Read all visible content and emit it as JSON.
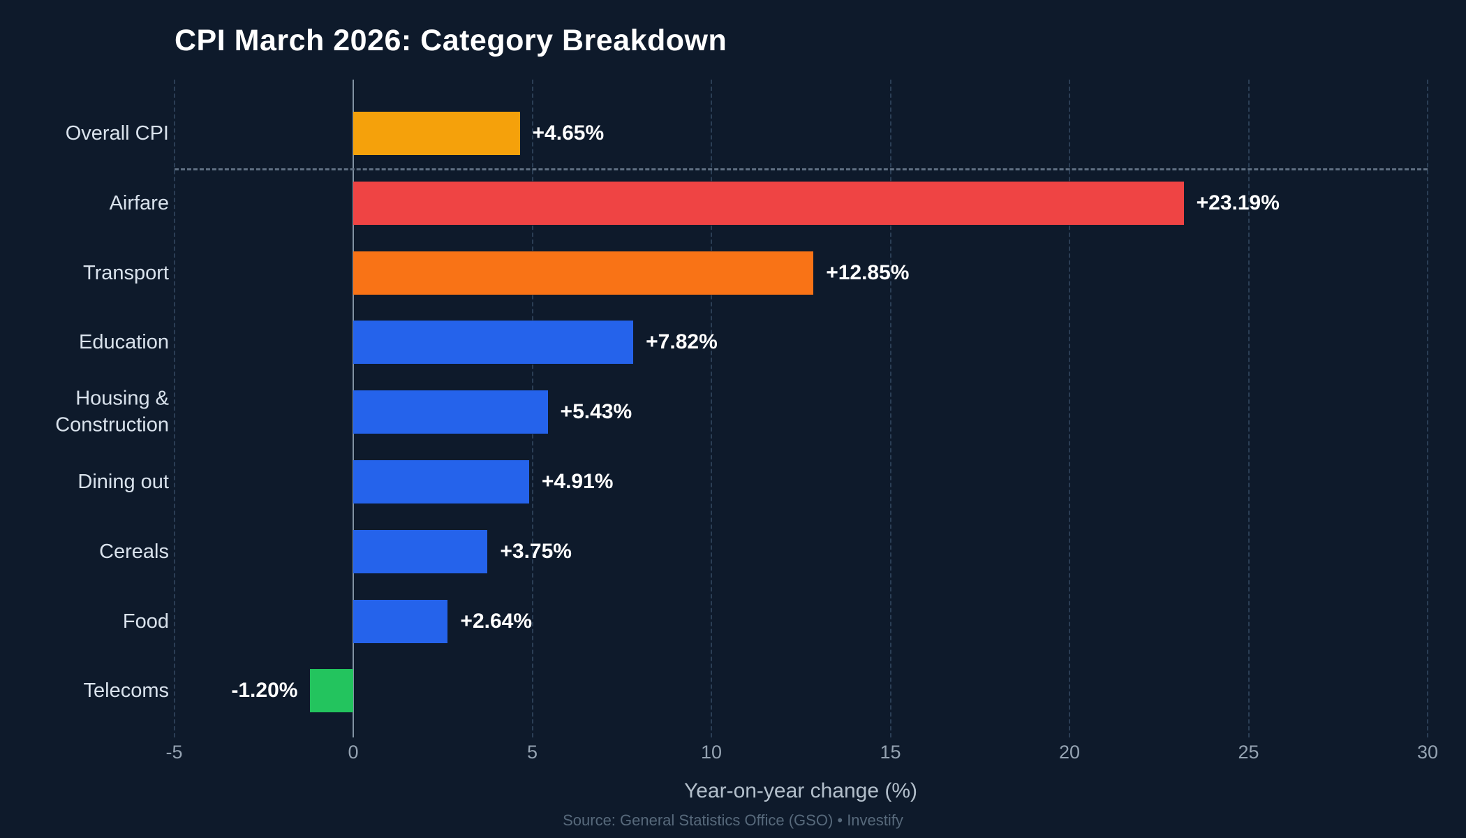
{
  "title": "CPI March 2026: Category Breakdown",
  "xaxis": {
    "label": "Year-on-year change (%)",
    "tick_labels": [
      "-5",
      "0",
      "5",
      "10",
      "15",
      "20",
      "25",
      "30"
    ]
  },
  "source": "Source: General Statistics Office (GSO) • Investify",
  "colors": {
    "background": "#0e1a2b",
    "overall_cpi": "#f5a10b",
    "airfare": "#ef4444",
    "transport": "#f97316",
    "default_blue": "#2563eb",
    "telecoms_green": "#23c45e",
    "gridline": "#2b3e55",
    "zero_line": "#8293a3",
    "separator": "#5f6f82",
    "category_text": "#d9e2ec",
    "value_text": "#ffffff",
    "tick_text": "#95a3b2",
    "axis_label_text": "#b3bfcb",
    "source_text": "#57697b"
  },
  "chart_data": {
    "type": "bar",
    "orientation": "horizontal",
    "title": "CPI March 2026: Category Breakdown",
    "xlabel": "Year-on-year change (%)",
    "ylabel": "",
    "xlim": [
      -5,
      30
    ],
    "xticks": [
      -5,
      0,
      5,
      10,
      15,
      20,
      25,
      30
    ],
    "grid": "dashed-vertical",
    "separator_after_category": "Overall CPI",
    "categories": [
      "Overall CPI",
      "Airfare",
      "Transport",
      "Education",
      "Housing &\nConstruction",
      "Dining out",
      "Cereals",
      "Food",
      "Telecoms"
    ],
    "values": [
      4.65,
      23.19,
      12.85,
      7.82,
      5.43,
      4.91,
      3.75,
      2.64,
      -1.2
    ],
    "value_labels": [
      "+4.65%",
      "+23.19%",
      "+12.85%",
      "+7.82%",
      "+5.43%",
      "+4.91%",
      "+3.75%",
      "+2.64%",
      "-1.20%"
    ],
    "bar_colors": [
      "#f5a10b",
      "#ef4444",
      "#f97316",
      "#2563eb",
      "#2563eb",
      "#2563eb",
      "#2563eb",
      "#2563eb",
      "#23c45e"
    ]
  }
}
